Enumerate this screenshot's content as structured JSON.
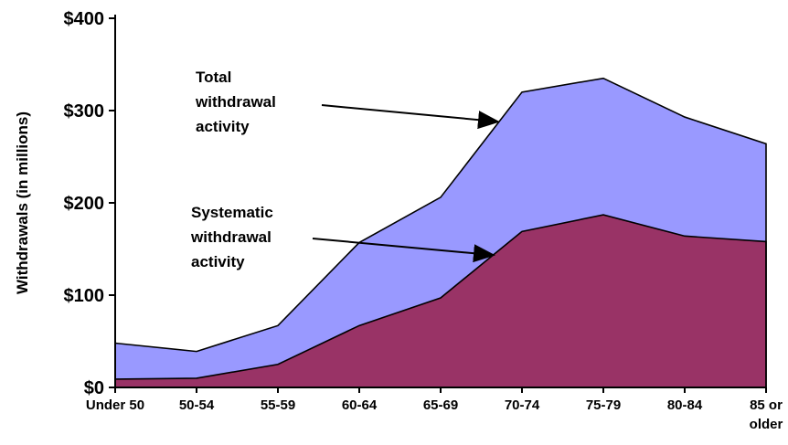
{
  "chart_data": {
    "type": "area",
    "categories": [
      "Under 50",
      "50-54",
      "55-59",
      "60-64",
      "65-69",
      "70-74",
      "75-79",
      "80-84",
      "85 or older"
    ],
    "ylabel": "Withdrawals (in millions)",
    "xlabel": "",
    "ylim": [
      0,
      400
    ],
    "yticks": [
      0,
      100,
      200,
      300,
      400
    ],
    "ytick_labels": [
      "$0",
      "$100",
      "$200",
      "$300",
      "$400"
    ],
    "grid": false,
    "series": [
      {
        "name": "Total withdrawal activity",
        "label_lines": [
          "Total",
          "withdrawal",
          "activity"
        ],
        "color": "#9999ff",
        "values": [
          48,
          39,
          67,
          157,
          206,
          320,
          335,
          293,
          264
        ]
      },
      {
        "name": "Systematic withdrawal activity",
        "label_lines": [
          "Systematic",
          "withdrawal",
          "activity"
        ],
        "color": "#993366",
        "values": [
          9,
          10,
          25,
          67,
          97,
          169,
          187,
          164,
          158
        ]
      }
    ]
  }
}
